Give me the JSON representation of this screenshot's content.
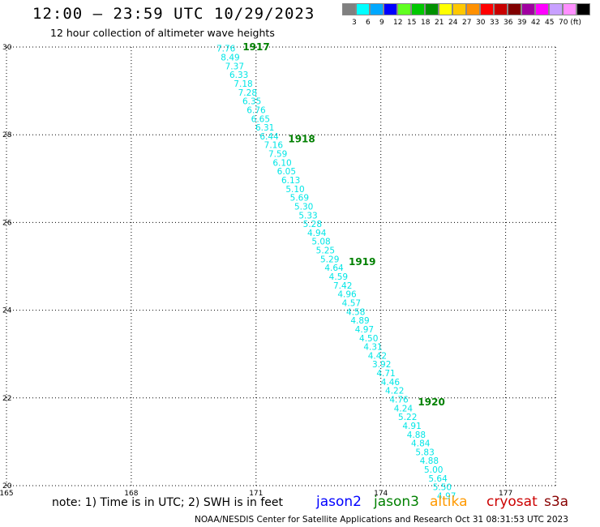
{
  "title": "12:00 — 23:59 UTC 10/29/2023",
  "subtitle": "12 hour collection of altimeter wave heights",
  "color_scale": {
    "colors": [
      "#808080",
      "#00ffff",
      "#00a8ff",
      "#0000ff",
      "#60ff20",
      "#00c800",
      "#009000",
      "#ffff00",
      "#ffc800",
      "#ff9000",
      "#ff0000",
      "#c80000",
      "#800000",
      "#a000a0",
      "#ff00ff",
      "#c8a0ff",
      "#ff90ff",
      "#000000"
    ],
    "labels": [
      "3",
      "6",
      "9",
      "12",
      "15",
      "18",
      "21",
      "24",
      "27",
      "30",
      "33",
      "36",
      "39",
      "42",
      "45",
      "70 (ft)"
    ]
  },
  "map": {
    "lon_ticks": [
      "165",
      "168",
      "171",
      "174",
      "177"
    ],
    "lat_ticks": [
      "20",
      "22",
      "24",
      "26",
      "28",
      "30"
    ],
    "track_color": "#00e6e6",
    "time_color": "#008000"
  },
  "observations": [
    {
      "swh": "7.76",
      "lat": 29.95
    },
    {
      "swh": "8.49",
      "lat": 29.75
    },
    {
      "swh": "7.37",
      "lat": 29.55
    },
    {
      "swh": "6.33",
      "lat": 29.35
    },
    {
      "swh": "7.18",
      "lat": 29.15
    },
    {
      "swh": "7.28",
      "lat": 28.95
    },
    {
      "swh": "6.35",
      "lat": 28.75
    },
    {
      "swh": "6.76",
      "lat": 28.55
    },
    {
      "swh": "6.65",
      "lat": 28.35
    },
    {
      "swh": "6.31",
      "lat": 28.15
    },
    {
      "swh": "6.44",
      "lat": 27.95
    },
    {
      "swh": "7.16",
      "lat": 27.75
    },
    {
      "swh": "7.59",
      "lat": 27.55
    },
    {
      "swh": "6.10",
      "lat": 27.35
    },
    {
      "swh": "6.05",
      "lat": 27.15
    },
    {
      "swh": "6.13",
      "lat": 26.95
    },
    {
      "swh": "5.10",
      "lat": 26.75
    },
    {
      "swh": "5.69",
      "lat": 26.55
    },
    {
      "swh": "5.30",
      "lat": 26.35
    },
    {
      "swh": "5.33",
      "lat": 26.15
    },
    {
      "swh": "5.28",
      "lat": 25.95
    },
    {
      "swh": "4.94",
      "lat": 25.75
    },
    {
      "swh": "5.08",
      "lat": 25.55
    },
    {
      "swh": "5.25",
      "lat": 25.35
    },
    {
      "swh": "5.29",
      "lat": 25.15
    },
    {
      "swh": "4.64",
      "lat": 24.95
    },
    {
      "swh": "4.59",
      "lat": 24.75
    },
    {
      "swh": "7.42",
      "lat": 24.55
    },
    {
      "swh": "4.96",
      "lat": 24.35
    },
    {
      "swh": "4.57",
      "lat": 24.15
    },
    {
      "swh": "4.58",
      "lat": 23.95
    },
    {
      "swh": "4.89",
      "lat": 23.75
    },
    {
      "swh": "4.97",
      "lat": 23.55
    },
    {
      "swh": "4.50",
      "lat": 23.35
    },
    {
      "swh": "4.31",
      "lat": 23.15
    },
    {
      "swh": "4.42",
      "lat": 22.95
    },
    {
      "swh": "3.92",
      "lat": 22.75
    },
    {
      "swh": "4.71",
      "lat": 22.55
    },
    {
      "swh": "4.46",
      "lat": 22.35
    },
    {
      "swh": "4.22",
      "lat": 22.15
    },
    {
      "swh": "4.76",
      "lat": 21.95
    },
    {
      "swh": "4.24",
      "lat": 21.75
    },
    {
      "swh": "5.22",
      "lat": 21.55
    },
    {
      "swh": "4.91",
      "lat": 21.35
    },
    {
      "swh": "4.88",
      "lat": 21.15
    },
    {
      "swh": "4.84",
      "lat": 20.95
    },
    {
      "swh": "5.83",
      "lat": 20.75
    },
    {
      "swh": "4.88",
      "lat": 20.55
    },
    {
      "swh": "5.00",
      "lat": 20.35
    },
    {
      "swh": "5.64",
      "lat": 20.15
    },
    {
      "swh": "5.50",
      "lat": 19.95
    },
    {
      "swh": "4.97",
      "lat": 19.75
    }
  ],
  "time_stamps": [
    {
      "time": "1917",
      "lat": 30.0
    },
    {
      "time": "1918",
      "lat": 27.9
    },
    {
      "time": "1919",
      "lat": 25.1
    },
    {
      "time": "1920",
      "lat": 21.9
    }
  ],
  "note": "note: 1) Time is in UTC; 2) SWH is in feet",
  "satellites": [
    {
      "name": "jason2",
      "color": "#0000ff"
    },
    {
      "name": "jason3",
      "color": "#008000"
    },
    {
      "name": "altika",
      "color": "#ff9900"
    },
    {
      "name": "cryosat",
      "color": "#cc0000"
    },
    {
      "name": "s3a",
      "color": "#880000"
    }
  ],
  "footer": "NOAA/NESDIS Center for Satellite Applications and Research   Oct 31 08:31:53 UTC 2023"
}
